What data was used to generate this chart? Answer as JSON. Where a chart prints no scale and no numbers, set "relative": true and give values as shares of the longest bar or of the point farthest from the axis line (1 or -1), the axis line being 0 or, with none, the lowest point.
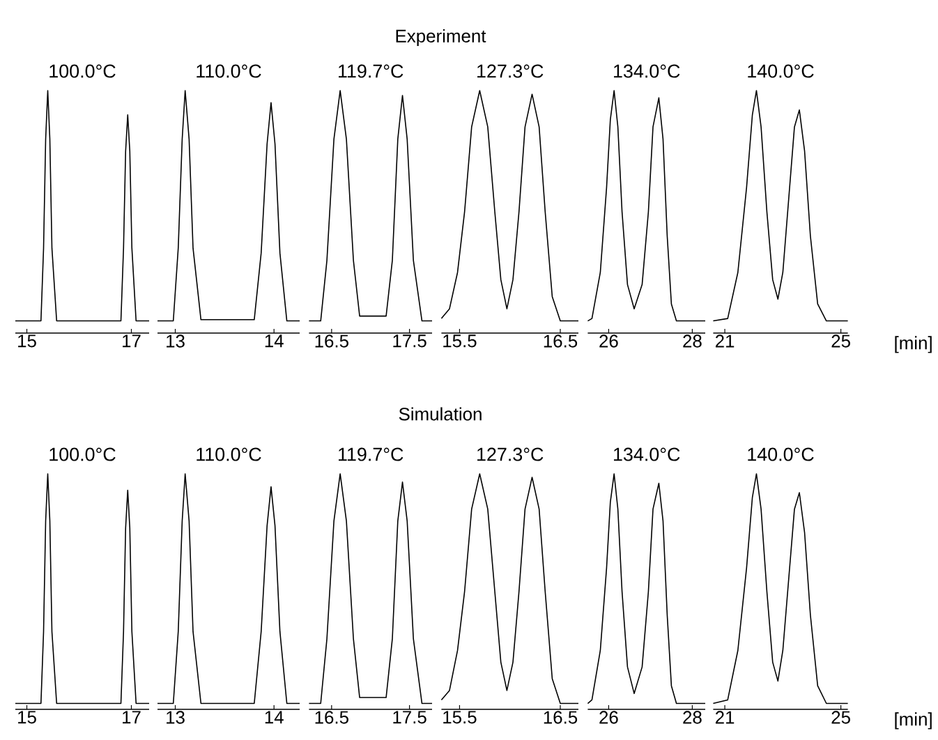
{
  "chart_data": [
    {
      "type": "line",
      "title": "100.0°C",
      "relative": true,
      "color": "#000000",
      "xlim": [
        14.78,
        17.34
      ],
      "xticks": [
        15,
        17
      ],
      "x": [
        14.78,
        15.27,
        15.32,
        15.36,
        15.4,
        15.44,
        15.48,
        15.57,
        16.8,
        16.85,
        16.89,
        16.93,
        16.97,
        17.01,
        17.09,
        17.34
      ],
      "values": [
        0.05,
        0.05,
        0.35,
        0.8,
        1,
        0.8,
        0.35,
        0.05,
        0.05,
        0.35,
        0.75,
        0.9,
        0.75,
        0.35,
        0.05,
        0.05
      ]
    },
    {
      "type": "line",
      "title": "110.0°C",
      "relative": true,
      "color": "#000000",
      "xlim": [
        12.82,
        14.26
      ],
      "xticks": [
        13,
        14
      ],
      "x": [
        12.82,
        12.98,
        13.03,
        13.07,
        13.1,
        13.14,
        13.18,
        13.26,
        13.8,
        13.87,
        13.93,
        13.97,
        14.01,
        14.06,
        14.13,
        14.26
      ],
      "values": [
        0.05,
        0.05,
        0.35,
        0.8,
        1,
        0.8,
        0.35,
        0.055,
        0.055,
        0.33,
        0.78,
        0.95,
        0.78,
        0.33,
        0.05,
        0.05
      ]
    },
    {
      "type": "line",
      "title": "119.7°C",
      "relative": true,
      "color": "#000000",
      "xlim": [
        16.21,
        17.79
      ],
      "xticks": [
        16.5,
        17.5
      ],
      "x": [
        16.21,
        16.36,
        16.44,
        16.53,
        16.61,
        16.69,
        16.78,
        16.86,
        17.03,
        17.2,
        17.28,
        17.35,
        17.41,
        17.47,
        17.55,
        17.66,
        17.79
      ],
      "values": [
        0.05,
        0.05,
        0.3,
        0.8,
        1,
        0.8,
        0.3,
        0.07,
        0.07,
        0.07,
        0.3,
        0.8,
        0.98,
        0.8,
        0.3,
        0.05,
        0.05
      ]
    },
    {
      "type": "line",
      "title": "127.3°C",
      "annotations": [
        "Experiment"
      ],
      "relative": true,
      "color": "#000000",
      "xlim": [
        15.32,
        16.68
      ],
      "xticks": [
        15.5,
        16.5
      ],
      "x": [
        15.32,
        15.4,
        15.48,
        15.55,
        15.62,
        15.7,
        15.78,
        15.85,
        15.91,
        15.97,
        16.03,
        16.09,
        16.15,
        16.22,
        16.29,
        16.35,
        16.42,
        16.5,
        16.68
      ],
      "values": [
        0.06,
        0.1,
        0.25,
        0.5,
        0.85,
        1,
        0.85,
        0.5,
        0.22,
        0.1,
        0.22,
        0.5,
        0.85,
        0.985,
        0.85,
        0.5,
        0.15,
        0.05,
        0.05
      ]
    },
    {
      "type": "line",
      "title": "134.0°C",
      "relative": true,
      "color": "#000000",
      "xlim": [
        25.5,
        28.31
      ],
      "xticks": [
        26,
        28
      ],
      "x": [
        25.5,
        25.6,
        25.8,
        25.95,
        26.04,
        26.13,
        26.22,
        26.32,
        26.45,
        26.61,
        26.8,
        26.95,
        27.06,
        27.2,
        27.3,
        27.4,
        27.5,
        27.62,
        28.31
      ],
      "values": [
        0.05,
        0.06,
        0.25,
        0.6,
        0.88,
        1,
        0.85,
        0.5,
        0.2,
        0.1,
        0.2,
        0.5,
        0.85,
        0.97,
        0.8,
        0.4,
        0.12,
        0.05,
        0.05
      ]
    },
    {
      "type": "line",
      "title": "140.0°C",
      "xlabel": "[min]",
      "relative": true,
      "color": "#000000",
      "xlim": [
        20.6,
        25.24
      ],
      "xticks": [
        21,
        25
      ],
      "x": [
        20.6,
        21.1,
        21.45,
        21.75,
        21.95,
        22.09,
        22.25,
        22.45,
        22.65,
        22.83,
        23.0,
        23.2,
        23.4,
        23.57,
        23.75,
        23.95,
        24.2,
        24.5,
        25.24
      ],
      "values": [
        0.05,
        0.06,
        0.25,
        0.6,
        0.9,
        1,
        0.85,
        0.5,
        0.22,
        0.14,
        0.25,
        0.55,
        0.85,
        0.92,
        0.75,
        0.4,
        0.12,
        0.05,
        0.05
      ]
    },
    {
      "type": "line",
      "title": "100.0°C",
      "relative": true,
      "color": "#000000",
      "xlim": [
        14.78,
        17.34
      ],
      "xticks": [
        15,
        17
      ],
      "x": [
        14.78,
        15.27,
        15.32,
        15.36,
        15.4,
        15.44,
        15.48,
        15.57,
        16.8,
        16.85,
        16.89,
        16.93,
        16.97,
        17.01,
        17.09,
        17.34
      ],
      "values": [
        0.025,
        0.025,
        0.33,
        0.8,
        1,
        0.8,
        0.33,
        0.025,
        0.025,
        0.33,
        0.77,
        0.93,
        0.77,
        0.33,
        0.025,
        0.025
      ]
    },
    {
      "type": "line",
      "title": "110.0°C",
      "relative": true,
      "color": "#000000",
      "xlim": [
        12.82,
        14.26
      ],
      "xticks": [
        13,
        14
      ],
      "x": [
        12.82,
        12.98,
        13.03,
        13.07,
        13.1,
        13.14,
        13.18,
        13.26,
        13.8,
        13.87,
        13.93,
        13.97,
        14.01,
        14.06,
        14.13,
        14.26
      ],
      "values": [
        0.025,
        0.025,
        0.33,
        0.8,
        1,
        0.8,
        0.33,
        0.025,
        0.025,
        0.33,
        0.78,
        0.945,
        0.78,
        0.33,
        0.025,
        0.025
      ]
    },
    {
      "type": "line",
      "title": "119.7°C",
      "relative": true,
      "color": "#000000",
      "xlim": [
        16.21,
        17.79
      ],
      "xticks": [
        16.5,
        17.5
      ],
      "x": [
        16.21,
        16.36,
        16.44,
        16.53,
        16.61,
        16.69,
        16.78,
        16.86,
        17.03,
        17.2,
        17.28,
        17.35,
        17.41,
        17.47,
        17.55,
        17.66,
        17.79
      ],
      "values": [
        0.025,
        0.025,
        0.3,
        0.8,
        1,
        0.8,
        0.3,
        0.05,
        0.05,
        0.05,
        0.3,
        0.8,
        0.965,
        0.8,
        0.3,
        0.025,
        0.025
      ]
    },
    {
      "type": "line",
      "title": "127.3°C",
      "annotations": [
        "Simulation"
      ],
      "relative": true,
      "color": "#000000",
      "xlim": [
        15.32,
        16.68
      ],
      "xticks": [
        15.5,
        16.5
      ],
      "x": [
        15.32,
        15.4,
        15.48,
        15.55,
        15.62,
        15.7,
        15.78,
        15.85,
        15.91,
        15.97,
        16.03,
        16.09,
        16.15,
        16.22,
        16.29,
        16.35,
        16.42,
        16.5,
        16.68
      ],
      "values": [
        0.04,
        0.08,
        0.25,
        0.5,
        0.85,
        1,
        0.85,
        0.5,
        0.2,
        0.08,
        0.2,
        0.5,
        0.85,
        0.985,
        0.85,
        0.5,
        0.13,
        0.025,
        0.025
      ]
    },
    {
      "type": "line",
      "title": "134.0°C",
      "relative": true,
      "color": "#000000",
      "xlim": [
        25.5,
        28.31
      ],
      "xticks": [
        26,
        28
      ],
      "x": [
        25.5,
        25.6,
        25.8,
        25.95,
        26.04,
        26.13,
        26.22,
        26.32,
        26.45,
        26.61,
        26.8,
        26.95,
        27.06,
        27.2,
        27.3,
        27.4,
        27.5,
        27.62,
        28.31
      ],
      "values": [
        0.025,
        0.04,
        0.25,
        0.6,
        0.88,
        1,
        0.85,
        0.5,
        0.18,
        0.067,
        0.18,
        0.5,
        0.85,
        0.96,
        0.8,
        0.4,
        0.1,
        0.025,
        0.025
      ]
    },
    {
      "type": "line",
      "title": "140.0°C",
      "xlabel": "[min]",
      "relative": true,
      "color": "#000000",
      "xlim": [
        20.6,
        25.24
      ],
      "xticks": [
        21,
        25
      ],
      "x": [
        20.6,
        21.1,
        21.45,
        21.75,
        21.95,
        22.09,
        22.25,
        22.45,
        22.65,
        22.83,
        23.0,
        23.2,
        23.4,
        23.57,
        23.75,
        23.95,
        24.2,
        24.5,
        25.24
      ],
      "values": [
        0.025,
        0.04,
        0.25,
        0.6,
        0.9,
        1,
        0.85,
        0.5,
        0.2,
        0.12,
        0.25,
        0.55,
        0.85,
        0.92,
        0.75,
        0.4,
        0.1,
        0.025,
        0.025
      ]
    }
  ]
}
